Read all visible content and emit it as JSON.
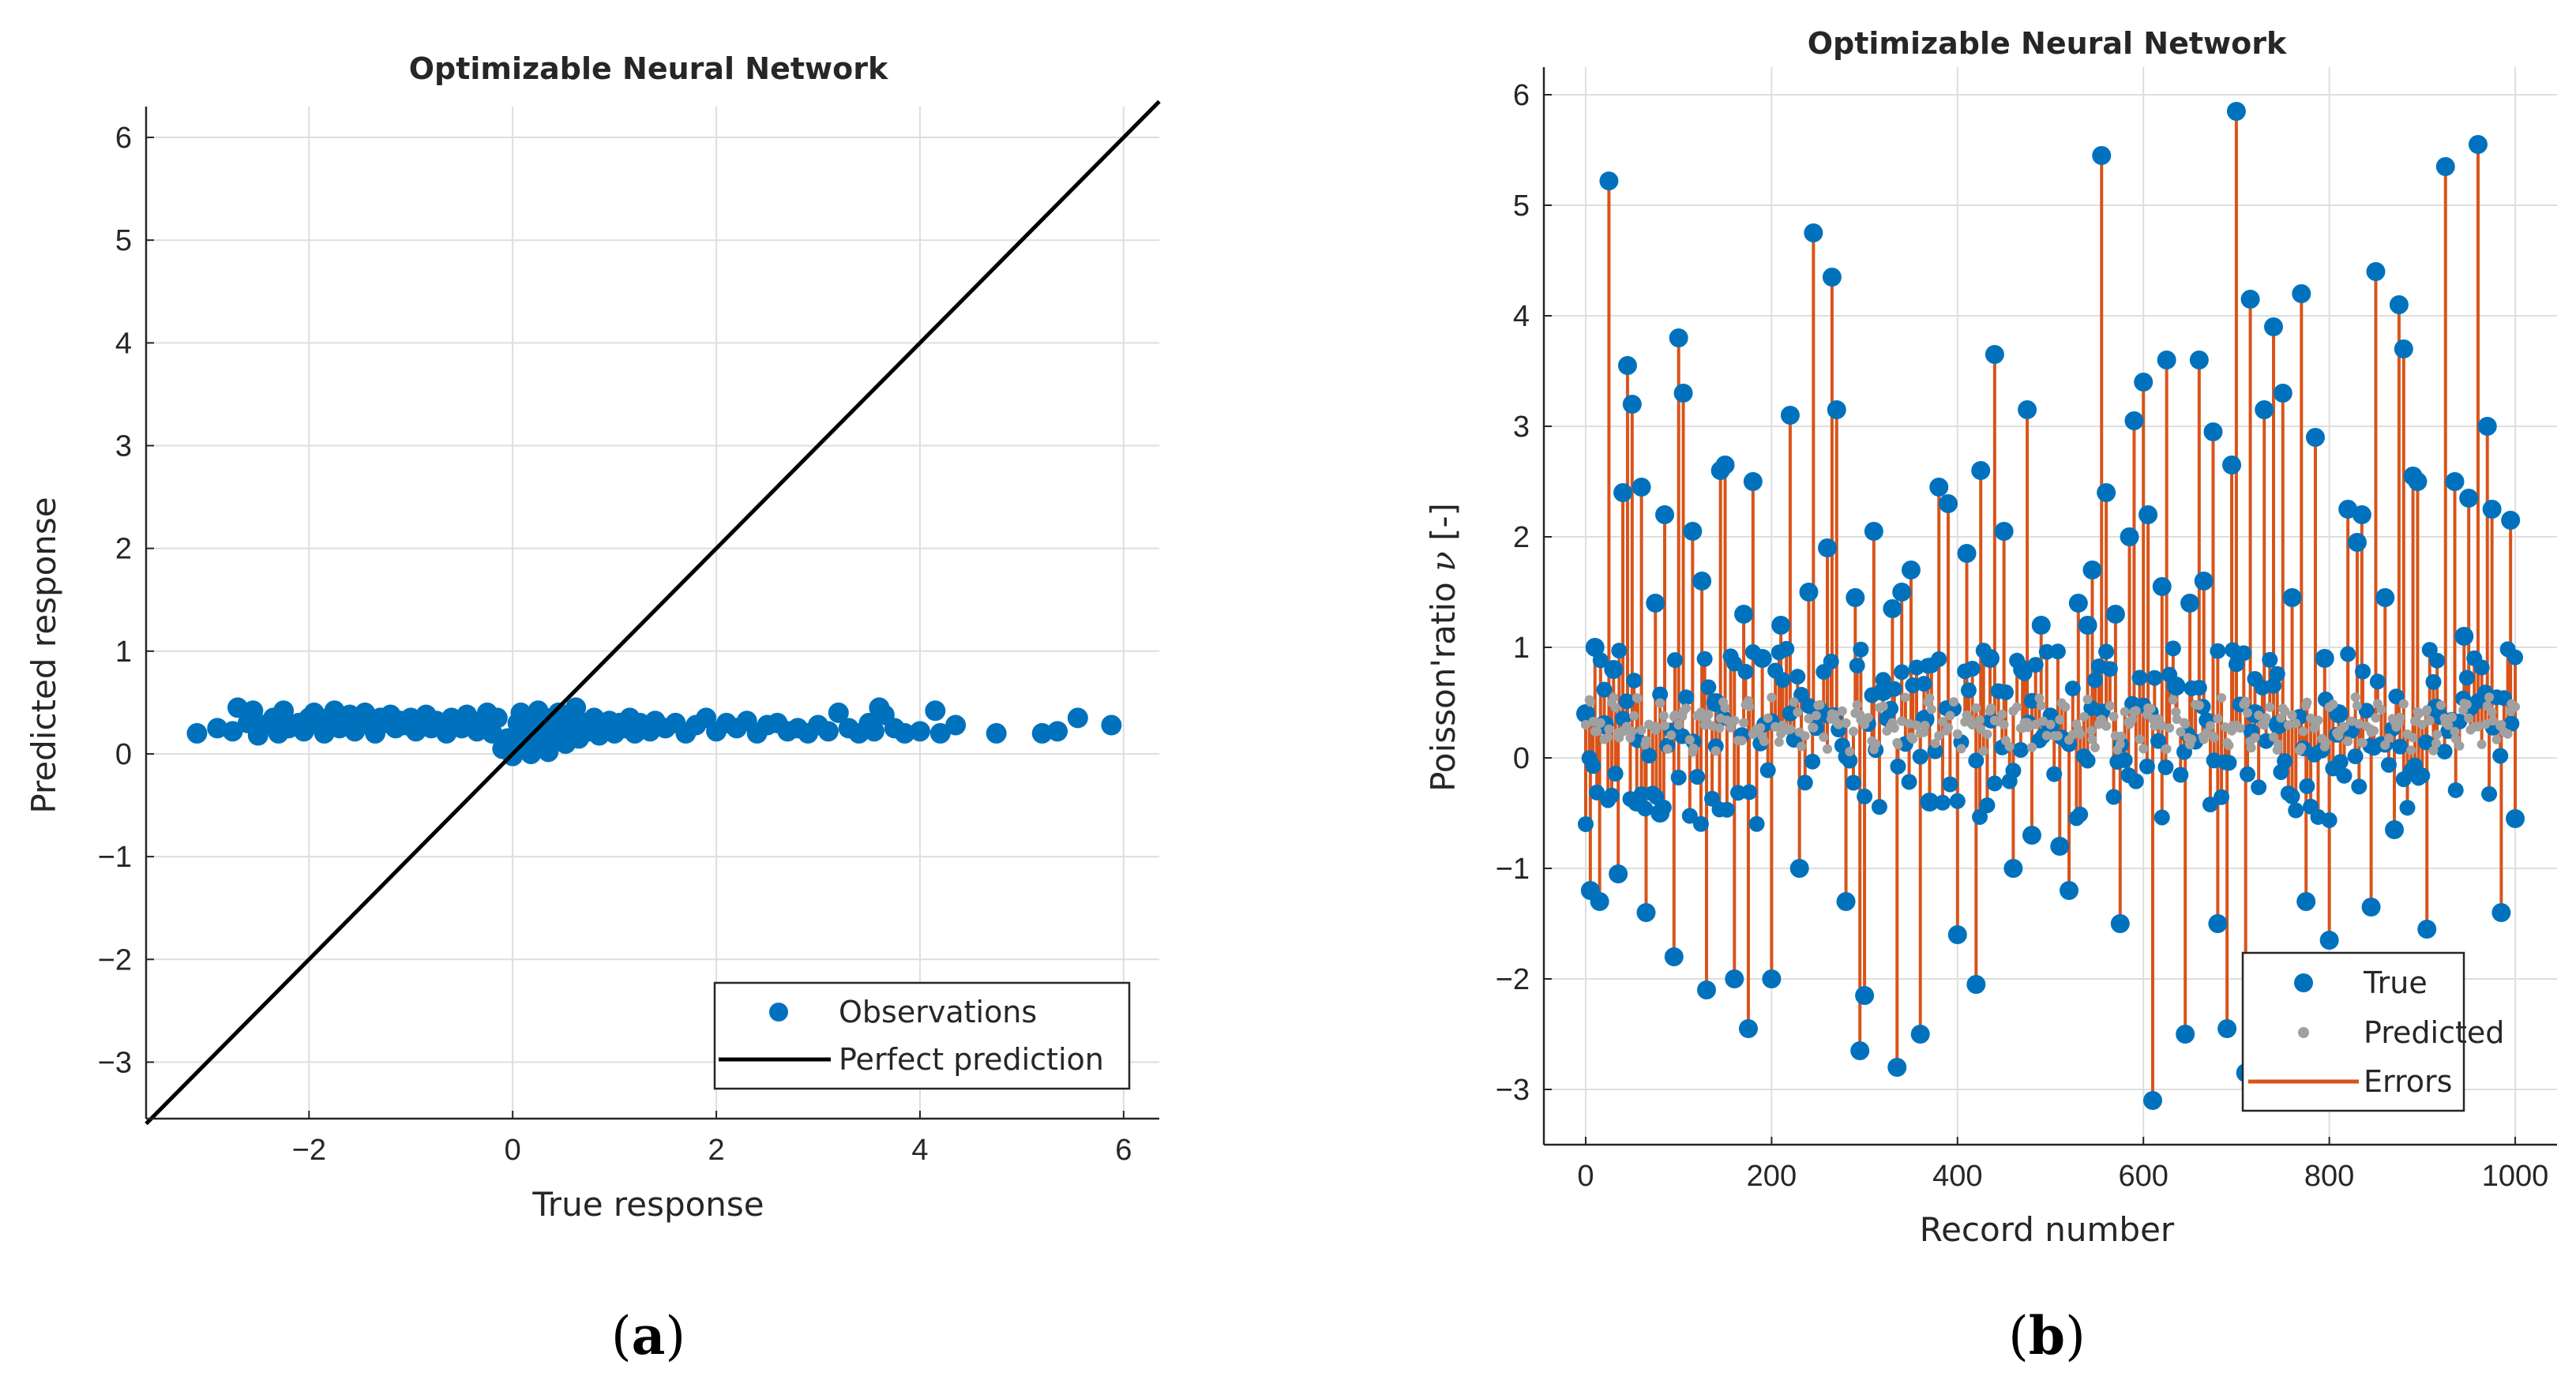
{
  "chart_data": [
    {
      "type": "scatter",
      "panel_label_open": "(",
      "panel_label_letter": "a",
      "panel_label_close": ")",
      "title": "Optimizable Neural Network",
      "xlabel": "True response",
      "ylabel": "Predicted response",
      "xlim": [
        -3.6,
        6.35
      ],
      "ylim": [
        -3.55,
        6.3
      ],
      "xticks": [
        -2,
        0,
        2,
        4,
        6
      ],
      "yticks": [
        -3,
        -2,
        -1,
        0,
        1,
        2,
        3,
        4,
        5,
        6
      ],
      "xtick_labels": [
        "−2",
        "0",
        "2",
        "4",
        "6"
      ],
      "ytick_labels": [
        "−3",
        "−2",
        "−1",
        "0",
        "1",
        "2",
        "3",
        "4",
        "5",
        "6"
      ],
      "grid": true,
      "legend_position": "bottom-right",
      "legend": [
        "Observations",
        "Perfect prediction"
      ],
      "series": [
        {
          "name": "Observations",
          "color": "#0072BD",
          "points": [
            [
              -3.1,
              0.2
            ],
            [
              -2.9,
              0.25
            ],
            [
              -2.75,
              0.22
            ],
            [
              -2.7,
              0.45
            ],
            [
              -2.6,
              0.3
            ],
            [
              -2.55,
              0.42
            ],
            [
              -2.5,
              0.18
            ],
            [
              -2.45,
              0.28
            ],
            [
              -2.35,
              0.35
            ],
            [
              -2.3,
              0.2
            ],
            [
              -2.25,
              0.42
            ],
            [
              -2.2,
              0.25
            ],
            [
              -2.1,
              0.3
            ],
            [
              -2.05,
              0.22
            ],
            [
              -2.0,
              0.35
            ],
            [
              -1.95,
              0.4
            ],
            [
              -1.9,
              0.28
            ],
            [
              -1.85,
              0.2
            ],
            [
              -1.8,
              0.35
            ],
            [
              -1.75,
              0.42
            ],
            [
              -1.7,
              0.25
            ],
            [
              -1.65,
              0.3
            ],
            [
              -1.6,
              0.38
            ],
            [
              -1.55,
              0.22
            ],
            [
              -1.5,
              0.32
            ],
            [
              -1.45,
              0.4
            ],
            [
              -1.4,
              0.28
            ],
            [
              -1.35,
              0.2
            ],
            [
              -1.3,
              0.35
            ],
            [
              -1.25,
              0.3
            ],
            [
              -1.2,
              0.38
            ],
            [
              -1.15,
              0.25
            ],
            [
              -1.1,
              0.32
            ],
            [
              -1.05,
              0.28
            ],
            [
              -1.0,
              0.35
            ],
            [
              -0.95,
              0.22
            ],
            [
              -0.9,
              0.3
            ],
            [
              -0.85,
              0.38
            ],
            [
              -0.8,
              0.25
            ],
            [
              -0.75,
              0.32
            ],
            [
              -0.7,
              0.28
            ],
            [
              -0.65,
              0.2
            ],
            [
              -0.6,
              0.35
            ],
            [
              -0.55,
              0.3
            ],
            [
              -0.5,
              0.25
            ],
            [
              -0.45,
              0.38
            ],
            [
              -0.4,
              0.32
            ],
            [
              -0.35,
              0.22
            ],
            [
              -0.3,
              0.3
            ],
            [
              -0.25,
              0.4
            ],
            [
              -0.2,
              0.2
            ],
            [
              -0.15,
              0.35
            ],
            [
              -0.1,
              0.05
            ],
            [
              -0.05,
              0.15
            ],
            [
              0.0,
              -0.02
            ],
            [
              0.02,
              0.1
            ],
            [
              0.05,
              0.3
            ],
            [
              0.08,
              0.4
            ],
            [
              0.1,
              0.05
            ],
            [
              0.12,
              0.2
            ],
            [
              0.15,
              0.35
            ],
            [
              0.18,
              0.0
            ],
            [
              0.2,
              0.12
            ],
            [
              0.22,
              0.28
            ],
            [
              0.25,
              0.42
            ],
            [
              0.28,
              0.08
            ],
            [
              0.3,
              0.2
            ],
            [
              0.32,
              0.35
            ],
            [
              0.35,
              0.02
            ],
            [
              0.38,
              0.18
            ],
            [
              0.4,
              0.3
            ],
            [
              0.42,
              0.12
            ],
            [
              0.45,
              0.4
            ],
            [
              0.48,
              0.22
            ],
            [
              0.5,
              0.35
            ],
            [
              0.52,
              0.1
            ],
            [
              0.55,
              0.28
            ],
            [
              0.58,
              0.4
            ],
            [
              0.6,
              0.2
            ],
            [
              0.62,
              0.45
            ],
            [
              0.65,
              0.15
            ],
            [
              0.7,
              0.3
            ],
            [
              0.75,
              0.22
            ],
            [
              0.8,
              0.35
            ],
            [
              0.85,
              0.18
            ],
            [
              0.9,
              0.28
            ],
            [
              0.95,
              0.32
            ],
            [
              1.0,
              0.2
            ],
            [
              1.05,
              0.3
            ],
            [
              1.1,
              0.25
            ],
            [
              1.15,
              0.35
            ],
            [
              1.2,
              0.2
            ],
            [
              1.25,
              0.3
            ],
            [
              1.3,
              0.28
            ],
            [
              1.35,
              0.22
            ],
            [
              1.4,
              0.32
            ],
            [
              1.5,
              0.25
            ],
            [
              1.6,
              0.3
            ],
            [
              1.7,
              0.2
            ],
            [
              1.8,
              0.28
            ],
            [
              1.9,
              0.35
            ],
            [
              2.0,
              0.22
            ],
            [
              2.1,
              0.3
            ],
            [
              2.2,
              0.25
            ],
            [
              2.3,
              0.32
            ],
            [
              2.4,
              0.2
            ],
            [
              2.5,
              0.28
            ],
            [
              2.6,
              0.3
            ],
            [
              2.7,
              0.22
            ],
            [
              2.8,
              0.25
            ],
            [
              2.9,
              0.2
            ],
            [
              3.0,
              0.28
            ],
            [
              3.1,
              0.22
            ],
            [
              3.2,
              0.4
            ],
            [
              3.3,
              0.25
            ],
            [
              3.4,
              0.2
            ],
            [
              3.5,
              0.3
            ],
            [
              3.55,
              0.22
            ],
            [
              3.6,
              0.45
            ],
            [
              3.65,
              0.38
            ],
            [
              3.75,
              0.25
            ],
            [
              3.85,
              0.2
            ],
            [
              4.0,
              0.22
            ],
            [
              4.15,
              0.42
            ],
            [
              4.2,
              0.2
            ],
            [
              4.35,
              0.28
            ],
            [
              4.75,
              0.2
            ],
            [
              5.2,
              0.2
            ],
            [
              5.35,
              0.22
            ],
            [
              5.55,
              0.35
            ],
            [
              5.88,
              0.28
            ]
          ]
        },
        {
          "name": "Perfect prediction",
          "type": "line",
          "color": "#000000",
          "x": [
            -3.6,
            6.35
          ],
          "y": [
            -3.6,
            6.35
          ]
        }
      ]
    },
    {
      "type": "line",
      "panel_label_open": "(",
      "panel_label_letter": "b",
      "panel_label_close": ")",
      "title": "Optimizable Neural Network",
      "xlabel": "Record number",
      "ylabel_text": "Poisson'ratio ",
      "ylabel_symbol": "ν",
      "ylabel_unit": " [-]",
      "xlim": [
        -45,
        1045
      ],
      "ylim": [
        -3.5,
        6.25
      ],
      "xticks": [
        0,
        200,
        400,
        600,
        800,
        1000
      ],
      "yticks": [
        -3,
        -2,
        -1,
        0,
        1,
        2,
        3,
        4,
        5,
        6
      ],
      "xtick_labels": [
        "0",
        "200",
        "400",
        "600",
        "800",
        "1000"
      ],
      "ytick_labels": [
        "−3",
        "−2",
        "−1",
        "0",
        "1",
        "2",
        "3",
        "4",
        "5",
        "6"
      ],
      "grid": true,
      "legend_position": "bottom-right",
      "legend": [
        "True",
        "Predicted",
        "Errors"
      ],
      "series": [
        {
          "name": "True",
          "color": "#0072BD",
          "x": [
            0,
            5,
            10,
            15,
            20,
            25,
            30,
            35,
            40,
            45,
            50,
            55,
            60,
            65,
            75,
            80,
            85,
            95,
            100,
            105,
            115,
            125,
            130,
            140,
            145,
            150,
            160,
            170,
            175,
            180,
            190,
            200,
            210,
            220,
            230,
            240,
            245,
            250,
            260,
            265,
            270,
            280,
            290,
            295,
            300,
            310,
            320,
            330,
            335,
            340,
            350,
            360,
            365,
            370,
            380,
            390,
            400,
            410,
            420,
            425,
            435,
            440,
            450,
            460,
            470,
            475,
            480,
            490,
            500,
            510,
            520,
            530,
            540,
            545,
            555,
            560,
            570,
            575,
            585,
            590,
            600,
            605,
            610,
            620,
            625,
            635,
            645,
            650,
            660,
            665,
            675,
            680,
            690,
            695,
            700,
            710,
            715,
            720,
            730,
            740,
            745,
            750,
            760,
            770,
            775,
            785,
            795,
            800,
            810,
            820,
            830,
            835,
            845,
            850,
            860,
            870,
            875,
            880,
            890,
            895,
            905,
            915,
            925,
            935,
            945,
            950,
            960,
            970,
            975,
            985,
            995,
            1000
          ],
          "values": [
            0.4,
            -1.2,
            1.0,
            -1.3,
            0.3,
            5.22,
            0.8,
            -1.05,
            2.4,
            3.55,
            3.2,
            -0.4,
            2.45,
            -1.4,
            1.4,
            -0.5,
            2.2,
            -1.8,
            3.8,
            3.3,
            2.05,
            1.6,
            -2.1,
            0.5,
            2.6,
            2.65,
            -2.0,
            1.3,
            -2.45,
            2.5,
            0.9,
            -2.0,
            1.2,
            3.1,
            -1.0,
            1.5,
            4.75,
            0.4,
            1.9,
            4.35,
            3.15,
            -1.3,
            1.45,
            -2.65,
            -2.15,
            2.05,
            0.6,
            1.35,
            -2.8,
            1.5,
            1.7,
            -2.5,
            0.35,
            -0.4,
            2.45,
            2.3,
            -1.6,
            1.85,
            -2.05,
            2.6,
            0.9,
            3.65,
            2.05,
            -1.0,
            0.8,
            3.15,
            -0.7,
            1.2,
            0.3,
            -0.8,
            -1.2,
            1.4,
            1.2,
            1.7,
            5.45,
            2.4,
            1.3,
            -1.5,
            2.0,
            3.05,
            3.4,
            2.2,
            -3.1,
            1.55,
            3.6,
            0.65,
            -2.5,
            1.4,
            3.6,
            1.6,
            2.95,
            -1.5,
            -2.45,
            2.65,
            5.85,
            -2.85,
            4.15,
            0.4,
            3.15,
            3.9,
            0.3,
            3.3,
            1.45,
            4.2,
            -1.3,
            2.9,
            0.9,
            -1.65,
            0.4,
            2.25,
            1.95,
            2.2,
            -1.35,
            4.4,
            1.45,
            -0.65,
            4.1,
            3.7,
            2.55,
            2.5,
            -1.55,
            0.45,
            5.35,
            2.5,
            1.1,
            2.35,
            5.55,
            3.0,
            2.25,
            -1.4,
            2.15,
            -0.55
          ]
        },
        {
          "name": "Predicted",
          "color": "#A0A0A0"
        },
        {
          "name": "Errors",
          "color": "#D95319"
        }
      ]
    }
  ]
}
